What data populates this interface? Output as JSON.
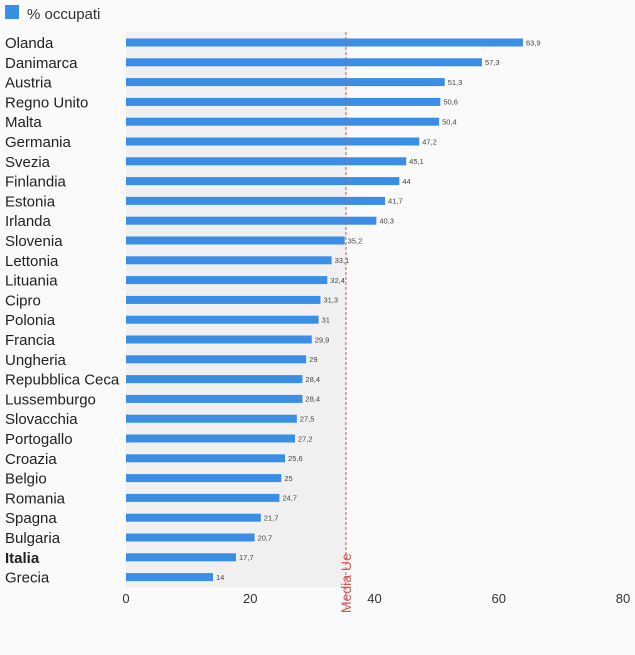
{
  "chart_data": {
    "type": "bar",
    "orientation": "horizontal",
    "categories": [
      "Olanda",
      "Danimarca",
      "Austria",
      "Regno Unito",
      "Malta",
      "Germania",
      "Svezia",
      "Finlandia",
      "Estonia",
      "Irlanda",
      "Slovenia",
      "Lettonia",
      "Lituania",
      "Cipro",
      "Polonia",
      "Francia",
      "Ungheria",
      "Repubblica Ceca",
      "Lussemburgo",
      "Slovacchia",
      "Portogallo",
      "Croazia",
      "Belgio",
      "Romania",
      "Spagna",
      "Bulgaria",
      "Italia",
      "Grecia"
    ],
    "value_labels": [
      "63,9",
      "57,3",
      "51,3",
      "50,6",
      "50,4",
      "47,2",
      "45,1",
      "44",
      "41,7",
      "40,3",
      "35,2",
      "33,1",
      "32,4",
      "31,3",
      "31",
      "29,9",
      "29",
      "28,4",
      "28,4",
      "27,5",
      "27,2",
      "25,6",
      "25",
      "24,7",
      "21,7",
      "20,7",
      "17,7",
      "14"
    ],
    "series": [
      {
        "name": "% occupati",
        "color": "#3a8ee6",
        "values": [
          63.9,
          57.3,
          51.3,
          50.6,
          50.4,
          47.2,
          45.1,
          44,
          41.7,
          40.3,
          35.2,
          33.1,
          32.4,
          31.3,
          31,
          29.9,
          29,
          28.4,
          28.4,
          27.5,
          27.2,
          25.6,
          25,
          24.7,
          21.7,
          20.7,
          17.7,
          14
        ]
      }
    ],
    "highlight_category": "Italia",
    "reference_line": {
      "label": "Media Ue",
      "value": 35.4,
      "color": "#d9534f"
    },
    "xlim": [
      0,
      80
    ],
    "xticks": [
      0,
      20,
      40,
      60,
      80
    ],
    "title": "",
    "xlabel": "",
    "ylabel": "",
    "legend": "top-left",
    "grid": false
  }
}
